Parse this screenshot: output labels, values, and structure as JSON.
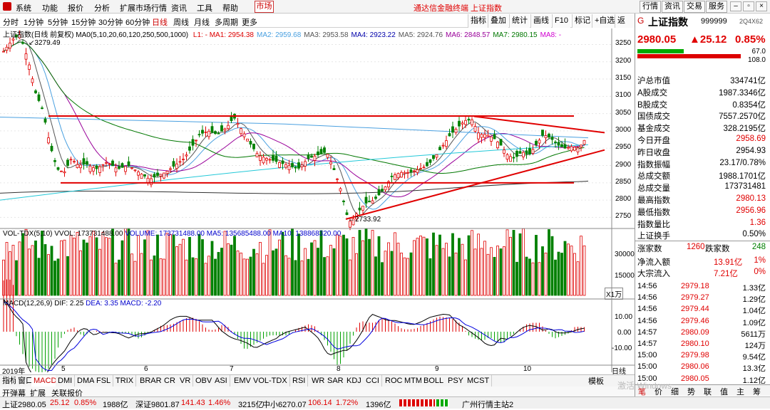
{
  "menu": {
    "items": [
      "系统",
      "功能",
      "报价",
      "分析",
      "扩展市场行情",
      "资讯",
      "工具",
      "帮助"
    ],
    "market_tab": "市场",
    "caption": "通达信金融终端  上证指数",
    "right_buttons": [
      "行情",
      "资讯",
      "交易",
      "服务"
    ]
  },
  "toolbar": {
    "periods": [
      "分时",
      "1分钟",
      "5分钟",
      "15分钟",
      "30分钟",
      "60分钟",
      "日线",
      "周线",
      "月线",
      "多周期",
      "更多"
    ],
    "active_period": "日线",
    "buttons": [
      "指标",
      "叠加",
      "统计",
      "画线",
      "F10",
      "标记",
      "+自选",
      "返回"
    ]
  },
  "main_legend": {
    "title": "上证指数(日线 前复权)",
    "ma_label": "MA0(5,10,20,60,120,250,500,1000)",
    "items": [
      {
        "t": "L1: - MA1: 2954.38",
        "c": "#dd0000"
      },
      {
        "t": "MA2: 2959.68",
        "c": "#4aa0e0"
      },
      {
        "t": "MA3: 2953.58",
        "c": "#555"
      },
      {
        "t": "MA4: 2923.22",
        "c": "#0000aa"
      },
      {
        "t": "MA5: 2924.76",
        "c": "#555"
      },
      {
        "t": "MA6: 2848.57",
        "c": "#990099"
      },
      {
        "t": "MA7: 2980.15",
        "c": "#007700"
      },
      {
        "t": "MA8: -",
        "c": "#d000d0"
      }
    ]
  },
  "annotations": {
    "high": "3279.49",
    "low": "2733.92"
  },
  "price_axis": [
    "3250",
    "3200",
    "3150",
    "3100",
    "3050",
    "3000",
    "2950",
    "2900",
    "2850",
    "2800",
    "2750"
  ],
  "vol_legend": {
    "title": "VOL-TDX(5,10)",
    "vvol": "VVOL: 173731488.00",
    "volume": "VOLUME: 173731488.00",
    "ma5": "MA5: 135685488.00",
    "ma10": "MA10: 138868320.00"
  },
  "vol_axis": [
    "30000",
    "15000"
  ],
  "vol_unit": "X1万",
  "macd_legend": {
    "title": "MACD(12,26,9)",
    "dif": "DIF: 2.25",
    "dea": "DEA: 3.35",
    "macd": "MACD: -2.20"
  },
  "macd_axis": [
    "10.00",
    "0.00",
    "-10.00"
  ],
  "date_axis": {
    "start": "2019年",
    "labels": [
      "5",
      "6",
      "7",
      "8",
      "9",
      "10"
    ],
    "mode": "日线"
  },
  "indicator_tabs": [
    "指标",
    "窗口",
    "MACD",
    "DMI",
    "DMA",
    "FSL",
    "TRIX",
    "BRAR",
    "CR",
    "VR",
    "OBV",
    "ASI",
    "EMV",
    "VOL-TDX",
    "RSI",
    "WR",
    "SAR",
    "KDJ",
    "CCI",
    "ROC",
    "MTM",
    "BOLL",
    "PSY",
    "MCST"
  ],
  "tab_more": "模板",
  "tab_nav": [
    "开弹幕",
    "扩展",
    "关联报价"
  ],
  "side": {
    "code_prefix": "G",
    "name": "上证指数",
    "code": "999999",
    "badge": "2Q4X62",
    "price": "2980.05",
    "change": "▲25.12",
    "pct": "0.85%",
    "bar_top": "67.0",
    "bar_bot": "108.0",
    "stats": [
      [
        "沪总市值",
        "334741亿",
        "#000"
      ],
      [
        "A股成交",
        "1987.3346亿",
        "#000"
      ],
      [
        "B股成交",
        "0.8354亿",
        "#000"
      ],
      [
        "国债成交",
        "7557.2570亿",
        "#000"
      ],
      [
        "基金成交",
        "328.2195亿",
        "#000"
      ],
      [
        "今日开盘",
        "2958.69",
        "#e00000"
      ],
      [
        "昨日收盘",
        "2954.93",
        "#000"
      ],
      [
        "指数振幅",
        "23.17/0.78%",
        "#000"
      ],
      [
        "总成交额",
        "1988.1701亿",
        "#000"
      ],
      [
        "总成交量",
        "173731481",
        "#000"
      ],
      [
        "最高指数",
        "2980.13",
        "#e00000"
      ],
      [
        "最低指数",
        "2956.96",
        "#e00000"
      ],
      [
        "指数量比",
        "1.36",
        "#e00000"
      ],
      [
        "上证换手",
        "0.50%",
        "#000"
      ]
    ],
    "rise_label": "涨家数",
    "rise": "1260",
    "fall_label": "跌家数",
    "fall": "248",
    "flow": [
      [
        "净流入额",
        "13.91亿",
        "1%"
      ],
      [
        "大宗流入",
        "7.21亿",
        "0%"
      ]
    ],
    "ticks": [
      [
        "14:56",
        "2979.18",
        "1.33亿"
      ],
      [
        "14:56",
        "2979.27",
        "1.29亿"
      ],
      [
        "14:56",
        "2979.44",
        "1.04亿"
      ],
      [
        "14:56",
        "2979.46",
        "1.09亿"
      ],
      [
        "14:57",
        "2980.09",
        "5611万"
      ],
      [
        "14:57",
        "2980.10",
        "124万"
      ],
      [
        "15:00",
        "2979.98",
        "9.54亿"
      ],
      [
        "15:00",
        "2980.06",
        "13.3亿"
      ],
      [
        "15:00",
        "2980.05",
        "1.12亿"
      ]
    ],
    "tabs": [
      "笔",
      "价",
      "细",
      "势",
      "联",
      "值",
      "主",
      "筹"
    ]
  },
  "status": {
    "sh": "上证2980.05",
    "sh_chg": "25.12",
    "sh_pct": "0.85%",
    "sh_amt": "1988亿",
    "sz": "深证9801.87",
    "sz_chg": "141.43",
    "sz_pct": "1.46%",
    "sz_amt": "3215亿",
    "zx": "中小6270.07",
    "zx_chg": "106.14",
    "zx_pct": "1.72%",
    "zx_amt": "1396亿",
    "station": "广州行情主站2"
  },
  "watermark": "激活 Windows",
  "colors": {
    "up": "#e00000",
    "down": "#008000",
    "accent": "#c00000"
  }
}
